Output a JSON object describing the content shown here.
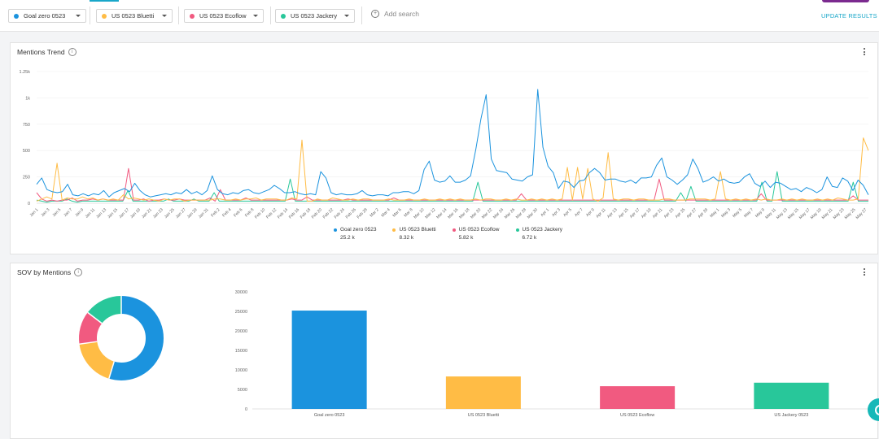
{
  "filters": [
    {
      "label": "Goal zero 0523",
      "color": "#1b93de"
    },
    {
      "label": "US 0523 Bluetti",
      "color": "#ffbc45"
    },
    {
      "label": "US 0523 Ecoflow",
      "color": "#f15a80"
    },
    {
      "label": "US 0523 Jackery",
      "color": "#28c79a"
    }
  ],
  "add_search_label": "Add search",
  "update_label": "UPDATE RESULTS",
  "trend_card": {
    "title": "Mentions Trend",
    "legend": [
      {
        "name": "Goal zero 0523",
        "total": "25.2 k"
      },
      {
        "name": "US 0523 Bluetti",
        "total": "8.32 k"
      },
      {
        "name": "US 0523 Ecoflow",
        "total": "5.82 k"
      },
      {
        "name": "US 0523 Jackery",
        "total": "6.72 k"
      }
    ]
  },
  "sov_card": {
    "title": "SOV by Mentions"
  },
  "chart_data": [
    {
      "type": "line",
      "title": "Mentions Trend",
      "y_ticks": [
        "1.25k",
        "1k",
        "750",
        "500",
        "250",
        "0"
      ],
      "ylim": [
        0,
        1250
      ],
      "x_tick_labels": [
        "Jan 1",
        "Jan 3",
        "Jan 5",
        "Jan 7",
        "Jan 9",
        "Jan 11",
        "Jan 13",
        "Jan 15",
        "Jan 17",
        "Jan 19",
        "Jan 21",
        "Jan 23",
        "Jan 25",
        "Jan 27",
        "Jan 29",
        "Jan 31",
        "Feb 2",
        "Feb 4",
        "Feb 6",
        "Feb 8",
        "Feb 10",
        "Feb 12",
        "Feb 14",
        "Feb 16",
        "Feb 18",
        "Feb 20",
        "Feb 22",
        "Feb 24",
        "Feb 26",
        "Feb 28",
        "Mar 2",
        "Mar 4",
        "Mar 6",
        "Mar 8",
        "Mar 10",
        "Mar 12",
        "Mar 14",
        "Mar 16",
        "Mar 18",
        "Mar 20",
        "Mar 22",
        "Mar 24",
        "Mar 26",
        "Mar 28",
        "Mar 30",
        "Apr 1",
        "Apr 3",
        "Apr 5",
        "Apr 7",
        "Apr 9",
        "Apr 11",
        "Apr 13",
        "Apr 15",
        "Apr 17",
        "Apr 19",
        "Apr 21",
        "Apr 23",
        "Apr 25",
        "Apr 27",
        "Apr 29",
        "May 1",
        "May 3",
        "May 5",
        "May 7",
        "May 9",
        "May 11",
        "May 13",
        "May 15",
        "May 17",
        "May 19",
        "May 21",
        "May 23",
        "May 25",
        "May 27"
      ],
      "series": [
        {
          "name": "Goal zero 0523",
          "color": "#1b93de",
          "values": [
            180,
            240,
            130,
            110,
            100,
            110,
            180,
            80,
            70,
            90,
            70,
            90,
            80,
            120,
            60,
            100,
            120,
            140,
            110,
            190,
            120,
            80,
            60,
            70,
            80,
            90,
            80,
            100,
            90,
            130,
            90,
            110,
            80,
            120,
            260,
            130,
            90,
            80,
            100,
            90,
            120,
            130,
            100,
            90,
            110,
            130,
            170,
            140,
            100,
            100,
            110,
            90,
            80,
            90,
            80,
            300,
            240,
            100,
            80,
            90,
            80,
            80,
            90,
            120,
            80,
            70,
            80,
            80,
            70,
            100,
            100,
            110,
            110,
            90,
            120,
            320,
            400,
            220,
            200,
            210,
            260,
            200,
            200,
            220,
            260,
            510,
            800,
            1030,
            420,
            310,
            300,
            290,
            230,
            220,
            210,
            250,
            270,
            1080,
            530,
            350,
            290,
            140,
            210,
            200,
            150,
            210,
            220,
            290,
            330,
            290,
            220,
            230,
            230,
            210,
            200,
            220,
            190,
            240,
            240,
            250,
            360,
            430,
            250,
            220,
            180,
            220,
            270,
            420,
            330,
            200,
            220,
            250,
            210,
            230,
            200,
            190,
            200,
            250,
            280,
            190,
            160,
            210,
            150,
            200,
            190,
            160,
            130,
            140,
            110,
            150,
            130,
            100,
            130,
            250,
            160,
            150,
            240,
            210,
            120,
            220,
            170,
            80
          ]
        },
        {
          "name": "US 0523 Bluetti",
          "color": "#ffbc45",
          "values": [
            20,
            40,
            60,
            40,
            380,
            30,
            50,
            40,
            40,
            60,
            40,
            50,
            30,
            40,
            30,
            40,
            30,
            80,
            40,
            50,
            40,
            30,
            40,
            30,
            20,
            40,
            30,
            40,
            40,
            20,
            30,
            30,
            30,
            30,
            30,
            40,
            40,
            30,
            30,
            40,
            30,
            40,
            40,
            50,
            30,
            40,
            40,
            40,
            30,
            30,
            50,
            40,
            600,
            20,
            20,
            40,
            30,
            30,
            50,
            40,
            30,
            30,
            40,
            30,
            40,
            40,
            30,
            30,
            30,
            40,
            30,
            30,
            30,
            40,
            30,
            30,
            40,
            30,
            30,
            40,
            30,
            40,
            30,
            40,
            30,
            30,
            40,
            30,
            40,
            40,
            30,
            30,
            40,
            30,
            40,
            30,
            30,
            40,
            30,
            40,
            30,
            40,
            30,
            40,
            340,
            30,
            340,
            40,
            330,
            40,
            20,
            50,
            480,
            40,
            30,
            40,
            40,
            30,
            40,
            40,
            30,
            30,
            30,
            40,
            40,
            30,
            30,
            30,
            40,
            40,
            40,
            40,
            30,
            40,
            300,
            40,
            30,
            40,
            30,
            40,
            30,
            40,
            30,
            40,
            30,
            30,
            40,
            30,
            40,
            30,
            40,
            30,
            30,
            40,
            30,
            40,
            30,
            50,
            40,
            30,
            30,
            40,
            620,
            500
          ]
        },
        {
          "name": "US 0523 Ecoflow",
          "color": "#f15a80",
          "values": [
            100,
            40,
            20,
            30,
            20,
            30,
            30,
            50,
            20,
            30,
            30,
            40,
            30,
            40,
            30,
            30,
            30,
            30,
            330,
            30,
            30,
            40,
            20,
            30,
            30,
            40,
            30,
            30,
            40,
            30,
            30,
            30,
            30,
            30,
            50,
            20,
            130,
            30,
            30,
            30,
            30,
            50,
            30,
            30,
            30,
            30,
            30,
            30,
            30,
            30,
            40,
            30,
            30,
            60,
            30,
            30,
            30,
            30,
            30,
            30,
            30,
            40,
            30,
            30,
            30,
            30,
            30,
            30,
            30,
            30,
            50,
            30,
            30,
            30,
            30,
            30,
            30,
            30,
            30,
            30,
            30,
            30,
            30,
            30,
            30,
            30,
            30,
            30,
            30,
            30,
            30,
            30,
            30,
            30,
            30,
            90,
            30,
            30,
            30,
            30,
            30,
            30,
            30,
            30,
            30,
            30,
            30,
            30,
            30,
            30,
            30,
            30,
            30,
            30,
            30,
            30,
            30,
            30,
            30,
            30,
            30,
            30,
            230,
            30,
            30,
            30,
            30,
            30,
            30,
            30,
            30,
            30,
            30,
            30,
            30,
            30,
            30,
            30,
            30,
            30,
            30,
            30,
            90,
            30,
            30,
            30,
            30,
            30,
            30,
            30,
            30,
            30,
            30,
            30,
            30,
            30,
            30,
            30,
            30,
            30,
            70,
            30,
            30,
            30
          ]
        },
        {
          "name": "US 0523 Jackery",
          "color": "#28c79a",
          "values": [
            30,
            20,
            10,
            20,
            20,
            20,
            40,
            20,
            10,
            20,
            20,
            20,
            20,
            20,
            20,
            20,
            20,
            20,
            120,
            20,
            20,
            20,
            20,
            20,
            20,
            20,
            40,
            20,
            20,
            20,
            20,
            40,
            20,
            20,
            20,
            100,
            20,
            20,
            20,
            20,
            20,
            20,
            20,
            20,
            20,
            20,
            20,
            20,
            20,
            20,
            230,
            20,
            20,
            20,
            20,
            20,
            20,
            20,
            20,
            20,
            20,
            20,
            20,
            20,
            20,
            20,
            20,
            20,
            20,
            20,
            20,
            20,
            20,
            20,
            20,
            20,
            20,
            20,
            20,
            20,
            20,
            20,
            20,
            20,
            20,
            20,
            20,
            200,
            20,
            20,
            20,
            20,
            20,
            20,
            20,
            20,
            20,
            20,
            20,
            20,
            20,
            20,
            20,
            20,
            20,
            20,
            20,
            20,
            20,
            20,
            20,
            20,
            20,
            20,
            20,
            20,
            20,
            20,
            20,
            20,
            20,
            20,
            20,
            20,
            20,
            20,
            20,
            100,
            20,
            160,
            20,
            20,
            20,
            20,
            20,
            20,
            20,
            20,
            20,
            20,
            20,
            20,
            20,
            200,
            20,
            20,
            300,
            20,
            20,
            20,
            20,
            20,
            20,
            20,
            20,
            20,
            20,
            20,
            20,
            20,
            20,
            200,
            20,
            20,
            20
          ]
        }
      ]
    },
    {
      "type": "pie",
      "subtype": "donut",
      "series": [
        {
          "name": "Goal zero 0523",
          "value": 25200,
          "color": "#1b93de"
        },
        {
          "name": "US 0523 Bluetti",
          "value": 8320,
          "color": "#ffbc45"
        },
        {
          "name": "US 0523 Ecoflow",
          "value": 5820,
          "color": "#f15a80"
        },
        {
          "name": "US 0523 Jackery",
          "value": 6720,
          "color": "#28c79a"
        }
      ]
    },
    {
      "type": "bar",
      "categories": [
        "Goal zero 0523",
        "US 0523 Bluetti",
        "US 0523 Ecoflow",
        "US Jackery 0523"
      ],
      "values": [
        25200,
        8320,
        5820,
        6720
      ],
      "colors": [
        "#1b93de",
        "#ffbc45",
        "#f15a80",
        "#28c79a"
      ],
      "y_ticks": [
        "30000",
        "25000",
        "20000",
        "15000",
        "10000",
        "5000",
        "0"
      ],
      "ylim": [
        0,
        30000
      ]
    }
  ]
}
